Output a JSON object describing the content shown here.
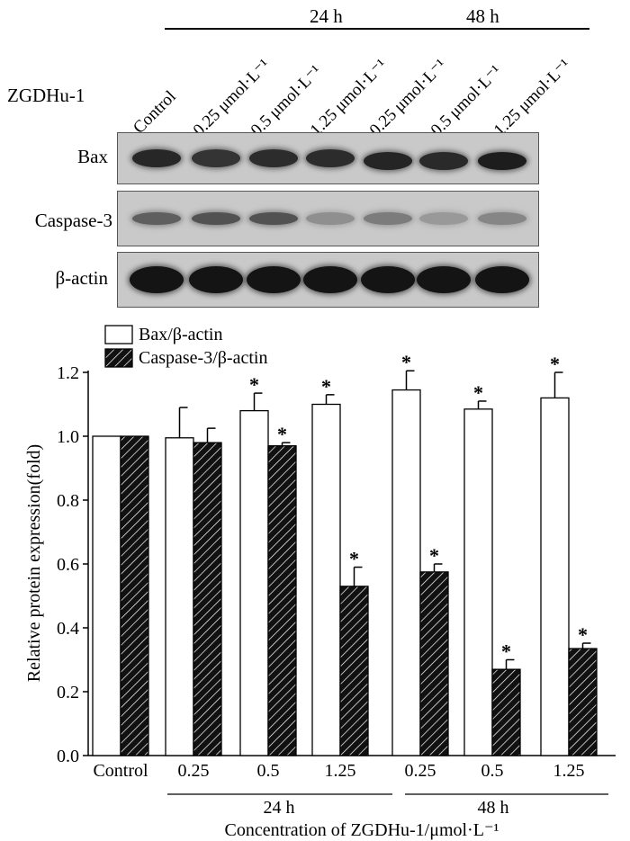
{
  "blot": {
    "time_labels": [
      "24 h",
      "48 h"
    ],
    "treatment_label": "ZGDHu-1",
    "lanes": [
      "Control",
      "0.25 μmol·L⁻¹",
      "0.5 μmol·L⁻¹",
      "1.25 μmol·L⁻¹",
      "0.25 μmol·L⁻¹",
      "0.5 μmol·L⁻¹",
      "1.25 μmol·L⁻¹"
    ],
    "rows": [
      "Bax",
      "Caspase-3",
      "β-actin"
    ],
    "band_intensity": {
      "Bax": [
        0.85,
        0.78,
        0.82,
        0.82,
        0.86,
        0.83,
        0.9
      ],
      "Caspase-3": [
        0.55,
        0.62,
        0.62,
        0.3,
        0.4,
        0.25,
        0.35
      ],
      "beta_actin": [
        0.95,
        0.95,
        0.95,
        0.95,
        0.95,
        0.95,
        0.95
      ]
    }
  },
  "chart_data": {
    "type": "bar",
    "ylabel": "Relative protein expression(fold)",
    "xlabel": "Concentration of ZGDHu-1/μmol·L⁻¹",
    "categories": [
      "Control",
      "0.25",
      "0.5",
      "1.25",
      "0.25",
      "0.5",
      "1.25"
    ],
    "group_labels": [
      "24 h",
      "48 h"
    ],
    "ylim": [
      0,
      1.2
    ],
    "yticks": [
      "0.0",
      "0.2",
      "0.4",
      "0.6",
      "0.8",
      "1.0",
      "1.2"
    ],
    "grid": false,
    "legend_position": "top-left",
    "series": [
      {
        "name": "Bax/β-actin",
        "fill": "white",
        "values": [
          1.0,
          0.995,
          1.08,
          1.1,
          1.145,
          1.085,
          1.12
        ],
        "errors": [
          0,
          0.095,
          0.055,
          0.03,
          0.06,
          0.025,
          0.08
        ],
        "significant": [
          false,
          false,
          true,
          true,
          true,
          true,
          true
        ]
      },
      {
        "name": "Caspase-3/β-actin",
        "fill": "hatched",
        "values": [
          1.0,
          0.98,
          0.97,
          0.53,
          0.575,
          0.27,
          0.335
        ],
        "errors": [
          0,
          0.045,
          0.01,
          0.06,
          0.025,
          0.03,
          0.017
        ],
        "significant": [
          false,
          false,
          true,
          true,
          true,
          true,
          true
        ]
      }
    ],
    "significance_marker": "*"
  }
}
